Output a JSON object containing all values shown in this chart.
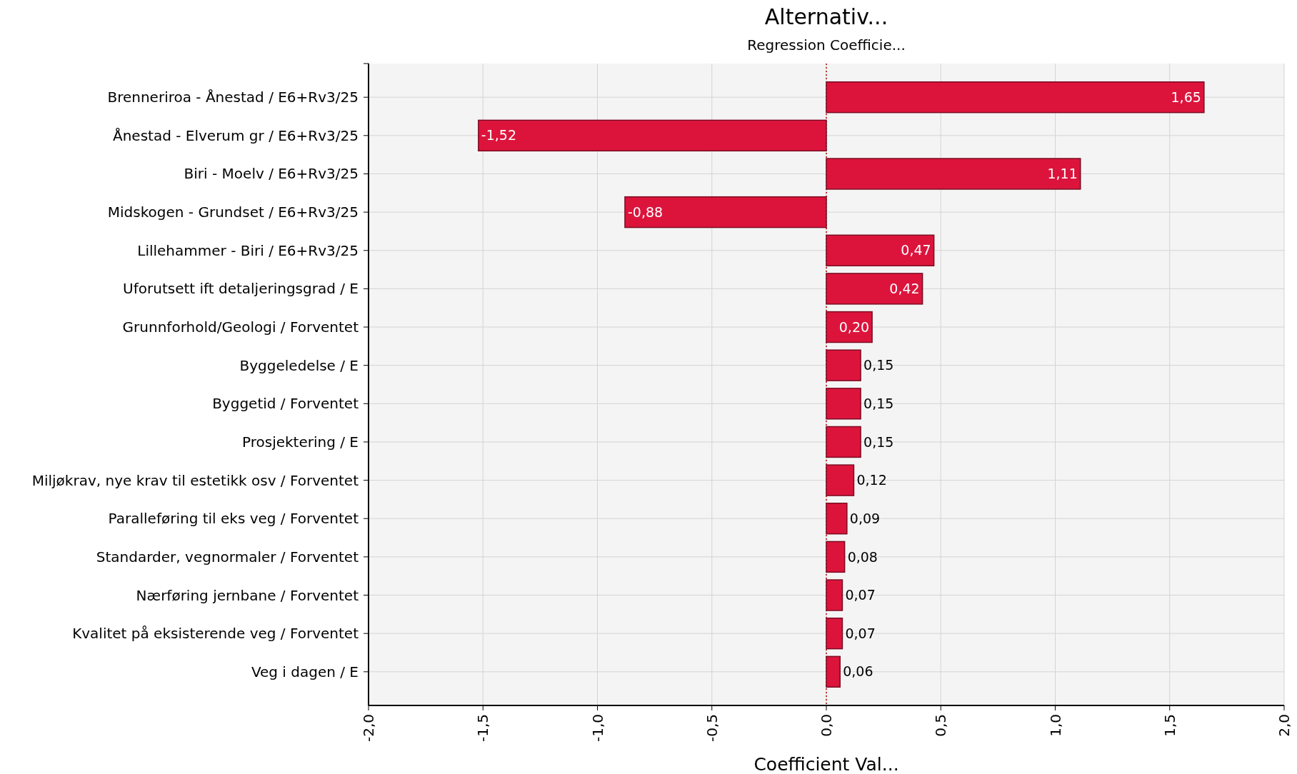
{
  "chart_data": {
    "type": "bar",
    "orientation": "horizontal",
    "title": "Alternativ...",
    "subtitle": "Regression Coefficie...",
    "xlabel": "Coefficient Val...",
    "categories": [
      "Brenneriroa - Ånestad / E6+Rv3/25",
      "Ånestad - Elverum gr / E6+Rv3/25",
      "Biri - Moelv / E6+Rv3/25",
      "Midskogen - Grundset / E6+Rv3/25",
      "Lillehammer - Biri / E6+Rv3/25",
      "Uforutsett ift detaljeringsgrad / E",
      "Grunnforhold/Geologi / Forventet",
      "Byggeledelse / E",
      "Byggetid / Forventet",
      "Prosjektering / E",
      "Miljøkrav, nye krav til estetikk osv / Forventet",
      "Paralleføring til eks veg / Forventet",
      "Standarder, vegnormaler / Forventet",
      "Nærføring jernbane / Forventet",
      "Kvalitet på eksisterende veg / Forventet",
      "Veg i dagen / E"
    ],
    "values": [
      1.65,
      -1.52,
      1.11,
      -0.88,
      0.47,
      0.42,
      0.2,
      0.15,
      0.15,
      0.15,
      0.12,
      0.09,
      0.08,
      0.07,
      0.07,
      0.06
    ],
    "value_labels": [
      "1,65",
      "-1,52",
      "1,11",
      "-0,88",
      "0,47",
      "0,42",
      "0,20",
      "0,15",
      "0,15",
      "0,15",
      "0,12",
      "0,09",
      "0,08",
      "0,07",
      "0,07",
      "0,06"
    ],
    "color": "#dc143c",
    "xlim": [
      -2,
      2
    ],
    "xticks": [
      {
        "value": -2,
        "label": "-2,0"
      },
      {
        "value": -1.5,
        "label": "-1,5"
      },
      {
        "value": -1,
        "label": "-1,0"
      },
      {
        "value": -0.5,
        "label": "-0,5"
      },
      {
        "value": 0,
        "label": "0,0"
      },
      {
        "value": 0.5,
        "label": "0,5"
      },
      {
        "value": 1,
        "label": "1,0"
      },
      {
        "value": 1.5,
        "label": "1,5"
      },
      {
        "value": 2,
        "label": "2,0"
      }
    ],
    "ref_lines": [
      {
        "axis": "x",
        "value": 0,
        "color": "#c00000",
        "line_style": "dotted"
      }
    ],
    "grid": true
  }
}
